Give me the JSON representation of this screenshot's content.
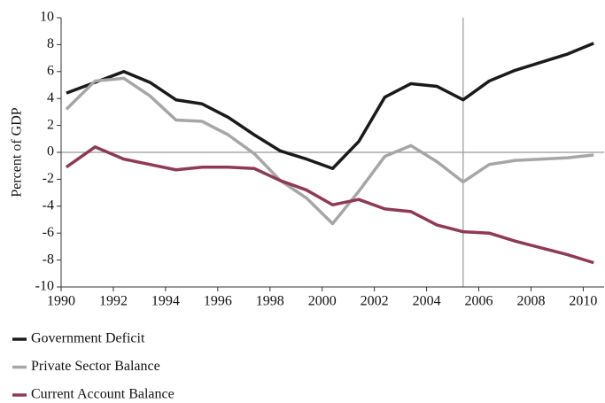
{
  "chart_data": {
    "type": "line",
    "y_label": "Percent of GDP",
    "x": [
      1990.2,
      1991.3,
      1992.4,
      1993.4,
      1994.4,
      1995.4,
      1996.4,
      1997.4,
      1998.4,
      1999.4,
      2000.4,
      2001.4,
      2002.4,
      2003.4,
      2004.4,
      2005.4,
      2006.4,
      2007.4,
      2008.4,
      2009.4,
      2010.4
    ],
    "series": [
      {
        "name": "Government Deficit",
        "color": "#1a1a1a",
        "values": [
          4.4,
          5.2,
          6.0,
          5.2,
          3.9,
          3.6,
          2.6,
          1.3,
          0.1,
          -0.5,
          -1.2,
          0.8,
          4.1,
          5.1,
          4.9,
          3.9,
          5.3,
          6.1,
          6.7,
          7.3,
          8.1
        ]
      },
      {
        "name": "Private Sector Balance",
        "color": "#a6a6a6",
        "values": [
          3.2,
          5.3,
          5.5,
          4.2,
          2.4,
          2.3,
          1.3,
          -0.1,
          -2.1,
          -3.4,
          -5.3,
          -2.9,
          -0.3,
          0.5,
          -0.7,
          -2.2,
          -0.9,
          -0.6,
          -0.5,
          -0.4,
          -0.2
        ]
      },
      {
        "name": "Current Account Balance",
        "color": "#8e3a55",
        "values": [
          -1.1,
          0.4,
          -0.5,
          -0.9,
          -1.3,
          -1.1,
          -1.1,
          -1.2,
          -2.1,
          -2.8,
          -3.9,
          -3.5,
          -4.2,
          -4.4,
          -5.4,
          -5.9,
          -6.0,
          -6.6,
          -7.1,
          -7.6,
          -8.2
        ]
      }
    ],
    "xlim": [
      1990,
      2010.8
    ],
    "ylim": [
      -10,
      10
    ],
    "xticks": [
      1990,
      1992,
      1994,
      1996,
      1998,
      2000,
      2002,
      2004,
      2006,
      2008,
      2010
    ],
    "yticks": [
      -10,
      -8,
      -6,
      -4,
      -2,
      0,
      2,
      4,
      6,
      8,
      10
    ],
    "vline": 2005.4,
    "legend": "bottom-left"
  }
}
